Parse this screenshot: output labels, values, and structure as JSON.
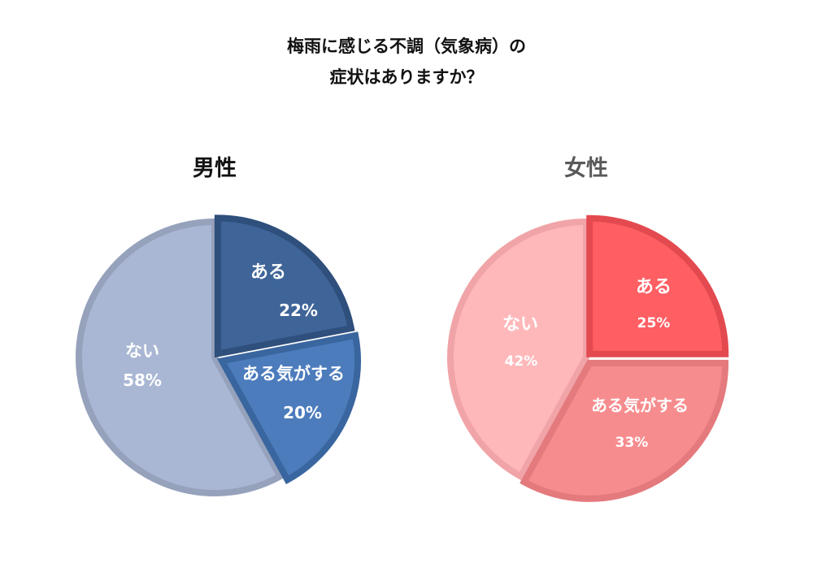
{
  "title_lines": [
    "梅雨に感じる不調（気象病）の",
    "症状はありますか？"
  ],
  "chart_data": [
    {
      "type": "pie",
      "title": "男性",
      "unit": "%",
      "slices": [
        {
          "label": "ある",
          "value": 22,
          "display": "22%",
          "color": "#3e6498",
          "stroke": "#2f4f7c"
        },
        {
          "label": "ある気がする",
          "value": 20,
          "display": "20%",
          "color": "#4c7cbc",
          "stroke": "#3a669f"
        },
        {
          "label": "ない",
          "value": 58,
          "display": "58%",
          "color": "#a9b7d4",
          "stroke": "#96a2bc"
        }
      ]
    },
    {
      "type": "pie",
      "title": "女性",
      "unit": "%",
      "slices": [
        {
          "label": "ある",
          "value": 25,
          "display": "25%",
          "color": "#ff5f63",
          "stroke": "#e34a50"
        },
        {
          "label": "ある気がする",
          "value": 33,
          "display": "33%",
          "color": "#f78c8e",
          "stroke": "#e47a7d"
        },
        {
          "label": "ない",
          "value": 42,
          "display": "42%",
          "color": "#ffb8ba",
          "stroke": "#f0a4a7"
        }
      ]
    }
  ]
}
